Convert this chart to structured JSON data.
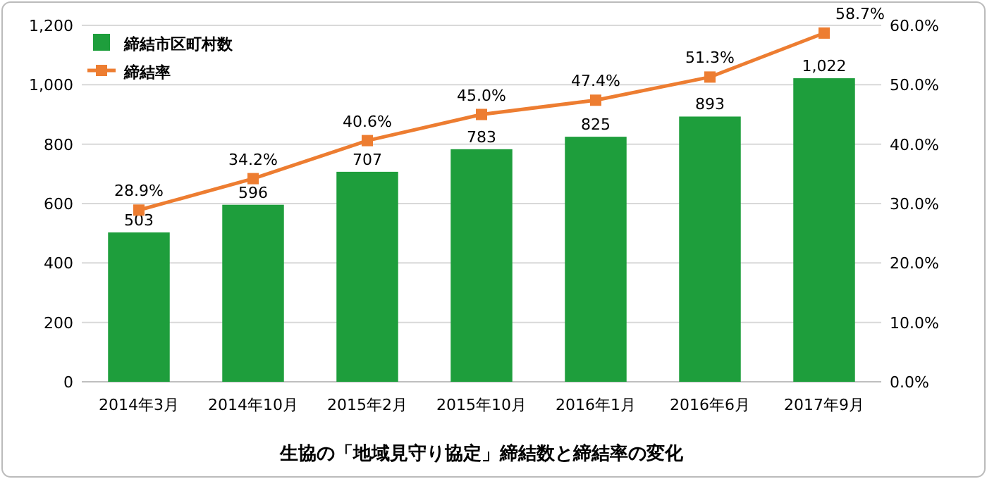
{
  "chart_data": {
    "type": "bar",
    "title": "生協の「地域見守り協定」締結数と締結率の変化",
    "categories": [
      "2014年3月",
      "2014年10月",
      "2015年2月",
      "2015年10月",
      "2016年1月",
      "2016年6月",
      "2017年9月"
    ],
    "series": [
      {
        "name": "締結市区町村数",
        "color": "#1e9e3c",
        "values": [
          503,
          596,
          707,
          783,
          825,
          893,
          1022
        ],
        "value_labels": [
          "503",
          "596",
          "707",
          "783",
          "825",
          "893",
          "1,022"
        ]
      },
      {
        "name": "締結率",
        "type": "line",
        "axis": "y2",
        "marker": "square",
        "color": "#ed7d31",
        "values": [
          28.9,
          34.2,
          40.6,
          45.0,
          47.4,
          51.3,
          58.7
        ],
        "value_labels": [
          "28.9%",
          "34.2%",
          "40.6%",
          "45.0%",
          "47.4%",
          "51.3%",
          "58.7%"
        ]
      }
    ],
    "ylim": [
      0,
      1200
    ],
    "yticks": [
      0,
      200,
      400,
      600,
      800,
      {
        "value": 1000,
        "label": "1,000"
      },
      {
        "value": 1200,
        "label": "1,200"
      }
    ],
    "y2lim": [
      0,
      60
    ],
    "y2ticks": [
      {
        "value": 0,
        "label": "0.0%"
      },
      {
        "value": 10,
        "label": "10.0%"
      },
      {
        "value": 20,
        "label": "20.0%"
      },
      {
        "value": 30,
        "label": "30.0%"
      },
      {
        "value": 40,
        "label": "40.0%"
      },
      {
        "value": 50,
        "label": "50.0%"
      },
      {
        "value": 60,
        "label": "60.0%"
      }
    ],
    "grid": "y",
    "legend": "top left"
  }
}
